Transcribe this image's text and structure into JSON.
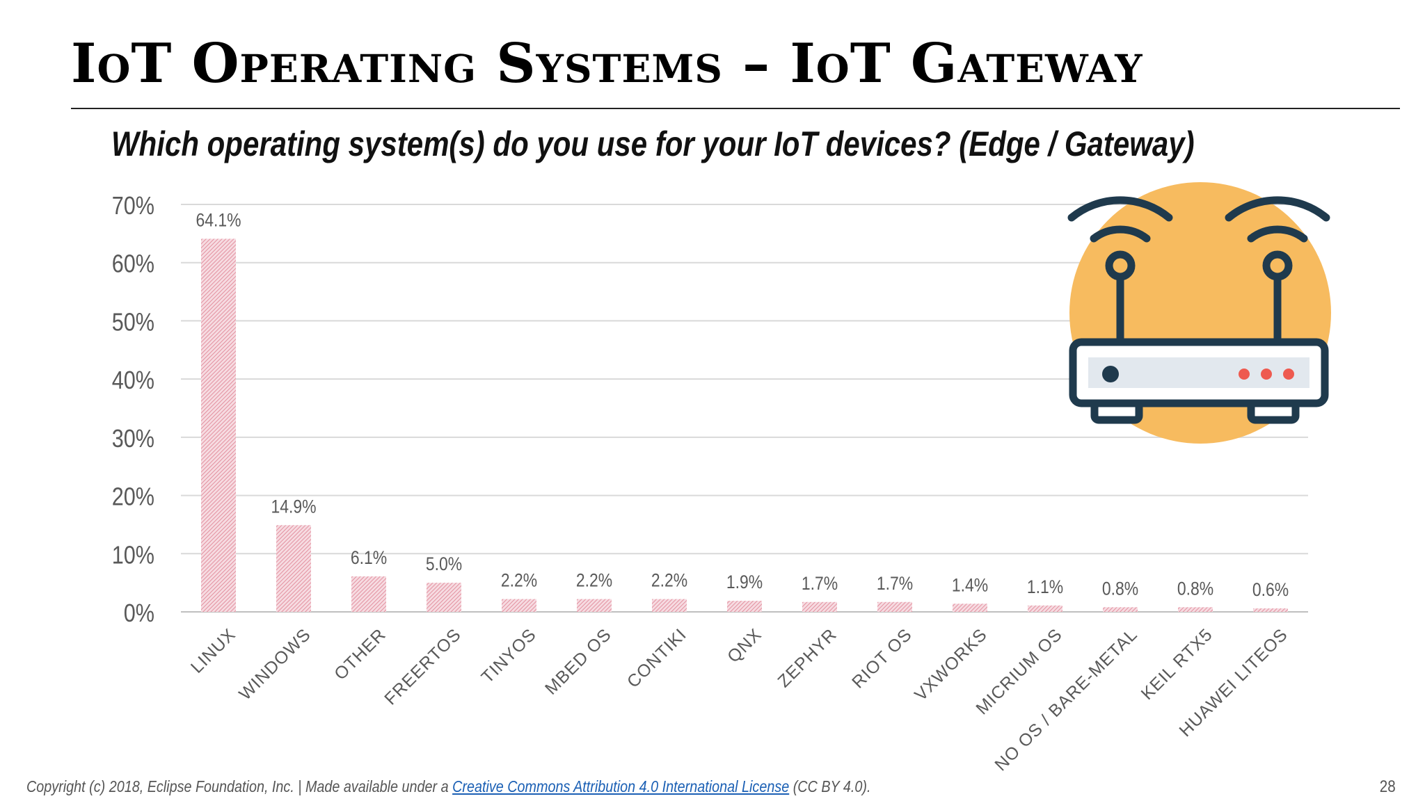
{
  "slide": {
    "title": "IoT Operating Systems – IoT Gateway",
    "subtitle": "Which operating system(s) do you use for your IoT devices?  (Edge / Gateway)",
    "page_number": "28"
  },
  "footer": {
    "prefix": "Copyright (c) 2018, Eclipse Foundation, Inc. | Made available under a ",
    "link_text": "Creative Commons Attribution 4.0 International License",
    "suffix": " (CC BY 4.0)."
  },
  "colors": {
    "bar": "#e8a3b1",
    "grid": "#d9d9d9",
    "axis_text": "#595959",
    "router_circle": "#f7bb5f",
    "router_dark": "#1f3a4d",
    "router_led": "#ee5a4f"
  },
  "icons": {
    "router": "wifi-router-icon"
  },
  "chart_data": {
    "type": "bar",
    "title": "Which operating system(s) do you use for your IoT devices?  (Edge / Gateway)",
    "xlabel": "",
    "ylabel": "",
    "ylim": [
      0,
      70
    ],
    "yticks": [
      0,
      10,
      20,
      30,
      40,
      50,
      60,
      70
    ],
    "ytick_labels": [
      "0%",
      "10%",
      "20%",
      "30%",
      "40%",
      "50%",
      "60%",
      "70%"
    ],
    "grid": true,
    "categories": [
      "LINUX",
      "WINDOWS",
      "OTHER",
      "FREERTOS",
      "TINYOS",
      "MBED OS",
      "CONTIKI",
      "QNX",
      "ZEPHYR",
      "RIOT OS",
      "VXWORKS",
      "MICRIUM OS",
      "NO OS / BARE-METAL",
      "KEIL RTX5",
      "HUAWEI LITEOS"
    ],
    "values": [
      64.1,
      14.9,
      6.1,
      5.0,
      2.2,
      2.2,
      2.2,
      1.9,
      1.7,
      1.7,
      1.4,
      1.1,
      0.8,
      0.8,
      0.6
    ],
    "value_labels": [
      "64.1%",
      "14.9%",
      "6.1%",
      "5.0%",
      "2.2%",
      "2.2%",
      "2.2%",
      "1.9%",
      "1.7%",
      "1.7%",
      "1.4%",
      "1.1%",
      "0.8%",
      "0.8%",
      "0.6%"
    ]
  }
}
